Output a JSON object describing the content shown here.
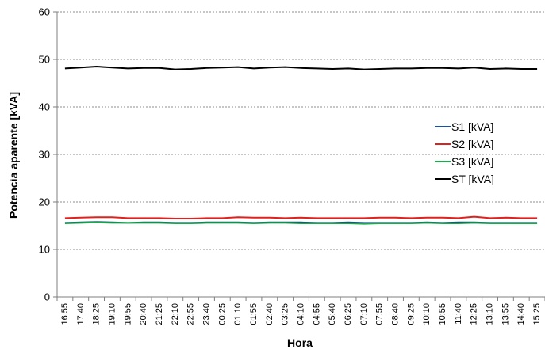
{
  "chart_data": {
    "type": "line",
    "title": "",
    "xlabel": "Hora",
    "ylabel": "Potencia aparente [kVA]",
    "ylim": [
      0,
      60
    ],
    "yticks": [
      0,
      10,
      20,
      30,
      40,
      50,
      60
    ],
    "grid": "horizontal dashed",
    "legend_position": "right-middle",
    "x": [
      "16:55",
      "17:40",
      "18:25",
      "19:10",
      "19:55",
      "20:40",
      "21:25",
      "22:10",
      "22:55",
      "23:40",
      "00:25",
      "01:10",
      "01:55",
      "02:40",
      "03:25",
      "04:10",
      "04:55",
      "05:40",
      "06:25",
      "07:10",
      "07:55",
      "08:40",
      "09:25",
      "10:10",
      "10:55",
      "11:40",
      "12:25",
      "13:10",
      "13:55",
      "14:40",
      "15:25"
    ],
    "series": [
      {
        "name": "S1 [kVA]",
        "color": "#1f4e9a",
        "values": [
          15.6,
          15.7,
          15.8,
          15.7,
          15.6,
          15.7,
          15.7,
          15.6,
          15.6,
          15.7,
          15.7,
          15.7,
          15.6,
          15.7,
          15.7,
          15.7,
          15.6,
          15.6,
          15.7,
          15.6,
          15.6,
          15.6,
          15.6,
          15.7,
          15.6,
          15.7,
          15.7,
          15.6,
          15.6,
          15.6,
          15.6
        ]
      },
      {
        "name": "S2 [kVA]",
        "color": "#e0211d",
        "values": [
          16.6,
          16.7,
          16.8,
          16.8,
          16.6,
          16.6,
          16.6,
          16.5,
          16.5,
          16.6,
          16.6,
          16.8,
          16.7,
          16.7,
          16.6,
          16.7,
          16.6,
          16.6,
          16.6,
          16.6,
          16.7,
          16.7,
          16.6,
          16.7,
          16.7,
          16.6,
          16.9,
          16.6,
          16.7,
          16.6,
          16.6
        ]
      },
      {
        "name": "S3 [kVA]",
        "color": "#1fa84a",
        "values": [
          15.5,
          15.6,
          15.7,
          15.6,
          15.6,
          15.6,
          15.6,
          15.5,
          15.5,
          15.6,
          15.6,
          15.6,
          15.5,
          15.6,
          15.6,
          15.5,
          15.5,
          15.5,
          15.5,
          15.4,
          15.5,
          15.5,
          15.5,
          15.6,
          15.5,
          15.5,
          15.6,
          15.5,
          15.5,
          15.5,
          15.5
        ]
      },
      {
        "name": "ST [kVA]",
        "color": "#000000",
        "values": [
          48.1,
          48.3,
          48.5,
          48.3,
          48.1,
          48.2,
          48.2,
          47.9,
          48.0,
          48.2,
          48.3,
          48.4,
          48.1,
          48.3,
          48.4,
          48.2,
          48.1,
          48.0,
          48.1,
          47.9,
          48.0,
          48.1,
          48.1,
          48.2,
          48.2,
          48.1,
          48.3,
          48.0,
          48.1,
          48.0,
          48.0
        ]
      }
    ]
  }
}
